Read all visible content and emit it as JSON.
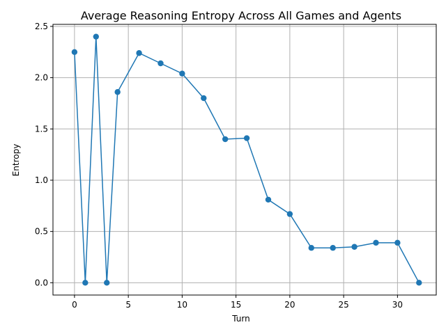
{
  "chart_data": {
    "type": "line",
    "title": "Average Reasoning Entropy Across All Games and Agents",
    "xlabel": "Turn",
    "ylabel": "Entropy",
    "xlim": [
      -2,
      33.6
    ],
    "ylim": [
      -0.12,
      2.52
    ],
    "xticks": [
      0,
      5,
      10,
      15,
      20,
      25,
      30
    ],
    "xtick_labels": [
      "0",
      "5",
      "10",
      "15",
      "20",
      "25",
      "30"
    ],
    "yticks": [
      0.0,
      0.5,
      1.0,
      1.5,
      2.0,
      2.5
    ],
    "ytick_labels": [
      "0.0",
      "0.5",
      "1.0",
      "1.5",
      "2.0",
      "2.5"
    ],
    "grid": true,
    "series": [
      {
        "color": "#1f77b4",
        "marker": "circle",
        "x": [
          0,
          1,
          2,
          3,
          4,
          6,
          8,
          10,
          12,
          14,
          16,
          18,
          20,
          22,
          24,
          26,
          28,
          30,
          32
        ],
        "y": [
          2.25,
          0.0,
          2.4,
          0.0,
          1.86,
          2.24,
          2.14,
          2.04,
          1.8,
          1.4,
          1.41,
          0.81,
          0.67,
          0.34,
          0.34,
          0.35,
          0.39,
          0.39,
          0.0
        ]
      }
    ]
  }
}
